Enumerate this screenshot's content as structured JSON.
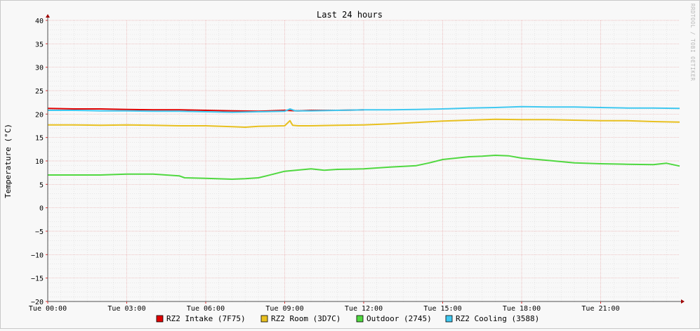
{
  "chart_data": {
    "type": "line",
    "title": "Last 24 hours",
    "xlabel": "",
    "ylabel": "Temperature (°C)",
    "watermark": "RRDTOOL / TOBI OETIKER",
    "ylim": [
      -20,
      40
    ],
    "y_ticks": [
      40,
      35,
      30,
      25,
      20,
      15,
      10,
      5,
      0,
      -5,
      -10,
      -15,
      -20
    ],
    "y_tick_labels": [
      "40",
      "35",
      "30",
      "25",
      "20",
      "15",
      "10",
      "5",
      "0",
      "−5",
      "−10",
      "−15",
      "−20"
    ],
    "x_range_hours": [
      0,
      24
    ],
    "x_ticks": [
      0,
      3,
      6,
      9,
      12,
      15,
      18,
      21
    ],
    "x_tick_labels": [
      "Tue 00:00",
      "Tue 03:00",
      "Tue 06:00",
      "Tue 09:00",
      "Tue 12:00",
      "Tue 15:00",
      "Tue 18:00",
      "Tue 21:00"
    ],
    "grid": true,
    "legend_position": "bottom",
    "series": [
      {
        "name": "RZ2 Intake (7F75)",
        "color": "#e00000",
        "hours": [
          0,
          1,
          2,
          3,
          4,
          5,
          6,
          7,
          8,
          9,
          9.5,
          10,
          11,
          12
        ],
        "values": [
          21.2,
          21.1,
          21.1,
          21.0,
          20.9,
          20.9,
          20.8,
          20.7,
          20.6,
          20.8,
          20.7,
          20.8,
          20.8,
          20.9
        ]
      },
      {
        "name": "RZ2 Room (3D7C)",
        "color": "#e8c020",
        "hours": [
          0,
          1,
          2,
          3,
          4,
          5,
          6,
          7,
          7.5,
          8,
          9,
          9.2,
          9.3,
          9.5,
          10,
          11,
          12,
          13,
          14,
          15,
          16,
          17,
          18,
          19,
          20,
          21,
          22,
          23,
          24
        ],
        "values": [
          17.7,
          17.7,
          17.6,
          17.7,
          17.6,
          17.5,
          17.5,
          17.3,
          17.2,
          17.4,
          17.5,
          18.6,
          17.6,
          17.5,
          17.5,
          17.6,
          17.7,
          17.9,
          18.2,
          18.5,
          18.7,
          18.9,
          18.8,
          18.8,
          18.7,
          18.6,
          18.6,
          18.4,
          18.3
        ]
      },
      {
        "name": "Outdoor (2745)",
        "color": "#50d840",
        "hours": [
          0,
          1,
          2,
          3,
          4,
          5,
          5.2,
          6,
          7,
          7.5,
          8,
          8.3,
          9,
          10,
          10.5,
          11,
          12,
          13,
          14,
          14.5,
          15,
          15.5,
          16,
          16.5,
          17,
          17.5,
          18,
          19,
          20,
          21,
          22,
          23,
          23.5,
          24
        ],
        "values": [
          7.0,
          7.0,
          7.0,
          7.2,
          7.2,
          6.8,
          6.4,
          6.3,
          6.1,
          6.2,
          6.4,
          6.8,
          7.8,
          8.3,
          8.0,
          8.2,
          8.3,
          8.7,
          9.0,
          9.6,
          10.3,
          10.6,
          10.9,
          11.0,
          11.2,
          11.1,
          10.6,
          10.1,
          9.6,
          9.4,
          9.3,
          9.2,
          9.5,
          8.9
        ]
      },
      {
        "name": "RZ2 Cooling (3588)",
        "color": "#40c8f0",
        "hours": [
          0,
          1,
          2,
          3,
          4,
          5,
          6,
          7,
          8,
          9,
          9.2,
          9.4,
          10,
          11,
          12,
          13,
          14,
          15,
          16,
          17,
          18,
          19,
          20,
          21,
          22,
          23,
          24
        ],
        "values": [
          20.8,
          20.8,
          20.7,
          20.7,
          20.6,
          20.6,
          20.5,
          20.4,
          20.5,
          20.6,
          21.1,
          20.7,
          20.7,
          20.8,
          20.9,
          20.9,
          21.0,
          21.1,
          21.3,
          21.4,
          21.6,
          21.5,
          21.5,
          21.4,
          21.3,
          21.3,
          21.2
        ]
      }
    ]
  }
}
